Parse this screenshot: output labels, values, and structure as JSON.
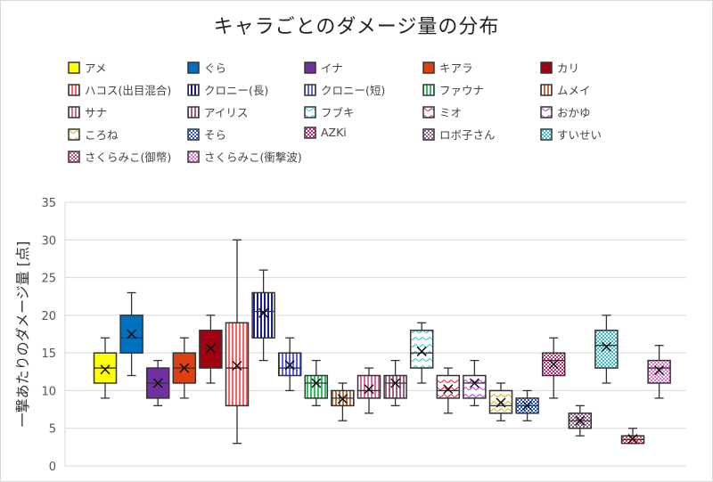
{
  "chart_data": {
    "type": "box",
    "title": "キャラごとのダメージ量の分布",
    "xlabel": "",
    "ylabel": "一撃あたりのダメージ量 [点]",
    "ylim": [
      0,
      35
    ],
    "yticks": [
      "0",
      "5",
      "10",
      "15",
      "20",
      "25",
      "30",
      "35"
    ],
    "grid": true,
    "legend_position": "top",
    "series": [
      {
        "name": "アメ",
        "color": "#ffff00",
        "pattern": "solid",
        "min": 9,
        "q1": 11,
        "median": 13,
        "q3": 15,
        "max": 17,
        "mean": 12.8
      },
      {
        "name": "ぐら",
        "color": "#0070c0",
        "pattern": "solid",
        "min": 12,
        "q1": 15,
        "median": 17,
        "q3": 20,
        "max": 23,
        "mean": 17.5
      },
      {
        "name": "イナ",
        "color": "#7030a0",
        "pattern": "solid",
        "min": 8,
        "q1": 9,
        "median": 11,
        "q3": 13,
        "max": 14,
        "mean": 11
      },
      {
        "name": "キアラ",
        "color": "#e04010",
        "pattern": "solid",
        "min": 9,
        "q1": 11,
        "median": 13,
        "q3": 15,
        "max": 17,
        "mean": 13
      },
      {
        "name": "カリ",
        "color": "#a00010",
        "pattern": "solid",
        "min": 11,
        "q1": 13,
        "median": 16,
        "q3": 18,
        "max": 20,
        "mean": 15.6
      },
      {
        "name": "ハコス(出目混合)",
        "color": "#ff6060",
        "pattern": "vlines",
        "min": 3,
        "q1": 8,
        "median": 13,
        "q3": 19,
        "max": 30,
        "mean": 13.3
      },
      {
        "name": "クロニー(長)",
        "color": "#1a1a90",
        "pattern": "vlines",
        "min": 14,
        "q1": 17,
        "median": 20.5,
        "q3": 23,
        "max": 26,
        "mean": 20.3
      },
      {
        "name": "クロニー(短)",
        "color": "#6060e0",
        "pattern": "vlines",
        "min": 10,
        "q1": 12,
        "median": 13,
        "q3": 15,
        "max": 17,
        "mean": 13.4
      },
      {
        "name": "ファウナ",
        "color": "#30c060",
        "pattern": "vlines",
        "min": 8,
        "q1": 9,
        "median": 11,
        "q3": 12,
        "max": 14,
        "mean": 11
      },
      {
        "name": "ムメイ",
        "color": "#c07040",
        "pattern": "vlines",
        "min": 6,
        "q1": 8,
        "median": 9,
        "q3": 10,
        "max": 11,
        "mean": 8.9
      },
      {
        "name": "サナ",
        "color": "#d070a0",
        "pattern": "vlines",
        "min": 7,
        "q1": 9,
        "median": 10,
        "q3": 12,
        "max": 13,
        "mean": 10.2
      },
      {
        "name": "アイリス",
        "color": "#a06080",
        "pattern": "vlines",
        "min": 8,
        "q1": 9,
        "median": 11,
        "q3": 12,
        "max": 14,
        "mean": 11
      },
      {
        "name": "フブキ",
        "color": "#30c0e0",
        "pattern": "wave",
        "min": 11,
        "q1": 13,
        "median": 15,
        "q3": 18,
        "max": 19,
        "mean": 15.2
      },
      {
        "name": "ミオ",
        "color": "#e02040",
        "pattern": "wave",
        "min": 7,
        "q1": 9,
        "median": 10,
        "q3": 12,
        "max": 13,
        "mean": 10.2
      },
      {
        "name": "おかゆ",
        "color": "#b040e0",
        "pattern": "wave",
        "min": 8,
        "q1": 9,
        "median": 11,
        "q3": 12,
        "max": 14,
        "mean": 11
      },
      {
        "name": "ころね",
        "color": "#e0b020",
        "pattern": "wave",
        "min": 6,
        "q1": 7,
        "median": 8,
        "q3": 10,
        "max": 11,
        "mean": 8.4
      },
      {
        "name": "そら",
        "color": "#2050e0",
        "pattern": "dots",
        "min": 6,
        "q1": 7,
        "median": 8,
        "q3": 9,
        "max": 10,
        "mean": 8
      },
      {
        "name": "AZKi",
        "color": "#d02070",
        "pattern": "dots",
        "min": 9,
        "q1": 12,
        "median": 14,
        "q3": 15,
        "max": 17,
        "mean": 13.5
      },
      {
        "name": "ロボ子さん",
        "color": "#906090",
        "pattern": "dots",
        "min": 4,
        "q1": 5,
        "median": 6,
        "q3": 7,
        "max": 8,
        "mean": 6
      },
      {
        "name": "すいせい",
        "color": "#30c0d0",
        "pattern": "dots",
        "min": 11,
        "q1": 13,
        "median": 16,
        "q3": 18,
        "max": 20,
        "mean": 15.8
      },
      {
        "name": "さくらみこ(御幣)",
        "color": "#e05070",
        "pattern": "dots",
        "min": 3,
        "q1": 3,
        "median": 3.5,
        "q3": 4,
        "max": 5,
        "mean": 3.6
      },
      {
        "name": "さくらみこ(衝撃波)",
        "color": "#e070d0",
        "pattern": "dots",
        "min": 9,
        "q1": 11,
        "median": 13,
        "q3": 14,
        "max": 16,
        "mean": 12.7
      }
    ]
  }
}
